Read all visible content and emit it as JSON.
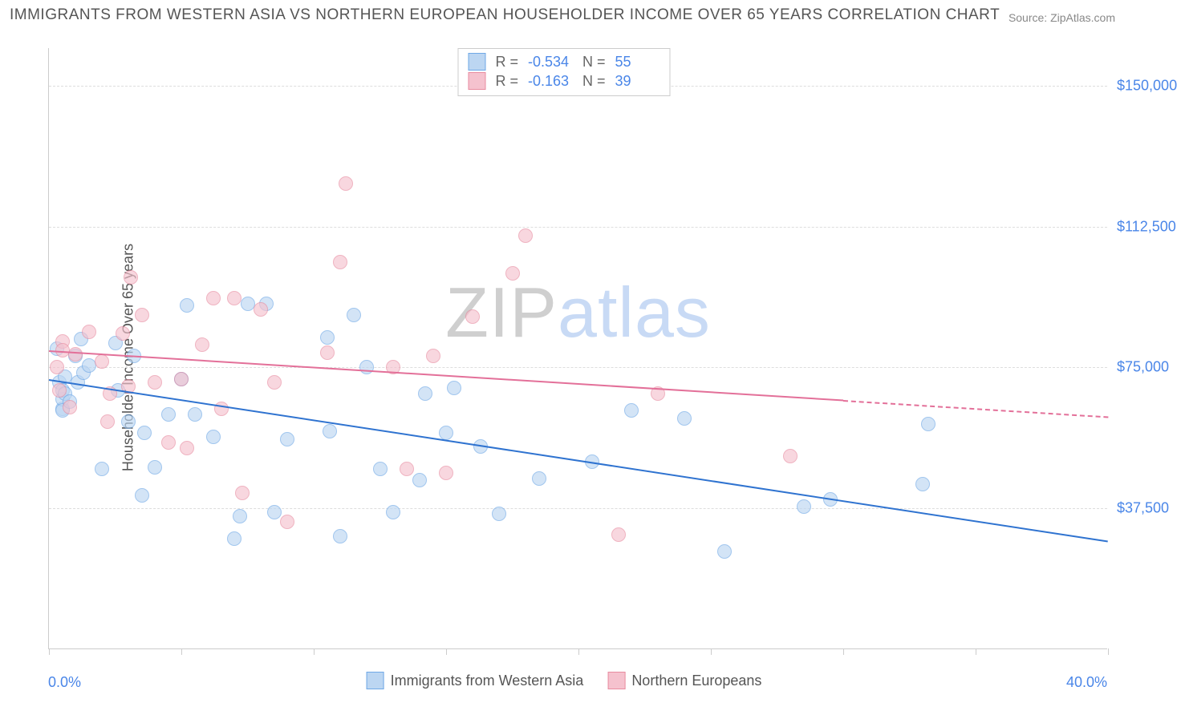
{
  "title": "IMMIGRANTS FROM WESTERN ASIA VS NORTHERN EUROPEAN HOUSEHOLDER INCOME OVER 65 YEARS CORRELATION CHART",
  "source": "Source: ZipAtlas.com",
  "watermark": {
    "part1": "ZIP",
    "part2": "atlas"
  },
  "chart": {
    "type": "scatter",
    "y_axis_label": "Householder Income Over 65 years",
    "x_min_label": "0.0%",
    "x_max_label": "40.0%",
    "xlim": [
      0,
      40
    ],
    "ylim": [
      0,
      160000
    ],
    "y_ticks": [
      {
        "value": 37500,
        "label": "$37,500"
      },
      {
        "value": 75000,
        "label": "$75,000"
      },
      {
        "value": 112500,
        "label": "$112,500"
      },
      {
        "value": 150000,
        "label": "$150,000"
      }
    ],
    "x_tick_values": [
      0,
      5,
      10,
      15,
      20,
      25,
      30,
      35,
      40
    ],
    "grid_color": "#dddddd",
    "axis_color": "#cccccc",
    "background_color": "#ffffff",
    "series": [
      {
        "name": "Immigrants from Western Asia",
        "short": "series_a",
        "fill": "#bcd6f2",
        "stroke": "#6fa8e6",
        "fill_opacity": 0.65,
        "marker_radius": 9,
        "R": "-0.534",
        "N": "55",
        "trend": {
          "color": "#2f73d0",
          "x0": 0,
          "y0": 72000,
          "x1": 40,
          "y1": 29000,
          "dash_after_x": 40
        },
        "points": [
          [
            0.3,
            80000
          ],
          [
            0.4,
            71000
          ],
          [
            0.5,
            64000
          ],
          [
            0.5,
            66500
          ],
          [
            0.5,
            69000
          ],
          [
            0.5,
            63500
          ],
          [
            0.6,
            72500
          ],
          [
            0.6,
            68000
          ],
          [
            0.8,
            66000
          ],
          [
            1.0,
            78000
          ],
          [
            1.1,
            71000
          ],
          [
            1.2,
            82500
          ],
          [
            1.3,
            73500
          ],
          [
            1.5,
            75500
          ],
          [
            2.0,
            48000
          ],
          [
            2.5,
            81500
          ],
          [
            2.6,
            69000
          ],
          [
            3.0,
            60500
          ],
          [
            3.2,
            78000
          ],
          [
            3.5,
            41000
          ],
          [
            3.6,
            57500
          ],
          [
            4.0,
            48500
          ],
          [
            4.5,
            62500
          ],
          [
            5.0,
            72000
          ],
          [
            5.2,
            91500
          ],
          [
            5.5,
            62500
          ],
          [
            6.2,
            56500
          ],
          [
            7.0,
            29500
          ],
          [
            7.2,
            35500
          ],
          [
            7.5,
            92000
          ],
          [
            8.2,
            92000
          ],
          [
            8.5,
            36500
          ],
          [
            9.0,
            56000
          ],
          [
            10.5,
            83000
          ],
          [
            10.6,
            58000
          ],
          [
            11.0,
            30000
          ],
          [
            11.5,
            89000
          ],
          [
            12.0,
            75000
          ],
          [
            12.5,
            48000
          ],
          [
            13.0,
            36500
          ],
          [
            14.0,
            45000
          ],
          [
            14.2,
            68000
          ],
          [
            15.0,
            57500
          ],
          [
            15.3,
            69500
          ],
          [
            16.3,
            54000
          ],
          [
            17.0,
            36000
          ],
          [
            18.5,
            45500
          ],
          [
            20.5,
            50000
          ],
          [
            22.0,
            63500
          ],
          [
            24.0,
            61500
          ],
          [
            25.5,
            26000
          ],
          [
            28.5,
            38000
          ],
          [
            29.5,
            40000
          ],
          [
            33.0,
            44000
          ],
          [
            33.2,
            60000
          ]
        ]
      },
      {
        "name": "Northern Europeans",
        "short": "series_b",
        "fill": "#f5c2ce",
        "stroke": "#e88ca0",
        "fill_opacity": 0.65,
        "marker_radius": 9,
        "R": "-0.163",
        "N": "39",
        "trend": {
          "color": "#e37099",
          "x0": 0,
          "y0": 79500,
          "x1": 40,
          "y1": 62000,
          "dash_after_x": 30
        },
        "points": [
          [
            0.3,
            75000
          ],
          [
            0.4,
            69000
          ],
          [
            0.5,
            82000
          ],
          [
            0.5,
            79500
          ],
          [
            0.8,
            64500
          ],
          [
            1.0,
            78500
          ],
          [
            1.5,
            84500
          ],
          [
            2.0,
            76500
          ],
          [
            2.2,
            60500
          ],
          [
            2.3,
            68000
          ],
          [
            2.8,
            84000
          ],
          [
            3.0,
            70000
          ],
          [
            3.1,
            99000
          ],
          [
            3.5,
            89000
          ],
          [
            4.0,
            71000
          ],
          [
            4.5,
            55000
          ],
          [
            5.0,
            72000
          ],
          [
            5.2,
            53500
          ],
          [
            5.8,
            81000
          ],
          [
            6.2,
            93500
          ],
          [
            6.5,
            64000
          ],
          [
            7.0,
            93500
          ],
          [
            7.3,
            41500
          ],
          [
            8.0,
            90500
          ],
          [
            8.5,
            71000
          ],
          [
            9.0,
            34000
          ],
          [
            10.5,
            79000
          ],
          [
            11.0,
            103000
          ],
          [
            11.2,
            124000
          ],
          [
            13.0,
            75000
          ],
          [
            13.5,
            48000
          ],
          [
            14.5,
            78000
          ],
          [
            15.0,
            47000
          ],
          [
            16.0,
            88500
          ],
          [
            17.5,
            100000
          ],
          [
            18.0,
            110000
          ],
          [
            21.5,
            30500
          ],
          [
            23.0,
            68000
          ],
          [
            28.0,
            51500
          ]
        ]
      }
    ]
  },
  "bottom_legend": [
    {
      "label": "Immigrants from Western Asia",
      "fill": "#bcd6f2",
      "stroke": "#6fa8e6"
    },
    {
      "label": "Northern Europeans",
      "fill": "#f5c2ce",
      "stroke": "#e88ca0"
    }
  ],
  "top_legend": {
    "r_label": "R =",
    "n_label": "N =",
    "rows": [
      {
        "swatch_fill": "#bcd6f2",
        "swatch_stroke": "#6fa8e6",
        "R": "-0.534",
        "N": "55"
      },
      {
        "swatch_fill": "#f5c2ce",
        "swatch_stroke": "#e88ca0",
        "R": "-0.163",
        "N": "39"
      }
    ]
  }
}
